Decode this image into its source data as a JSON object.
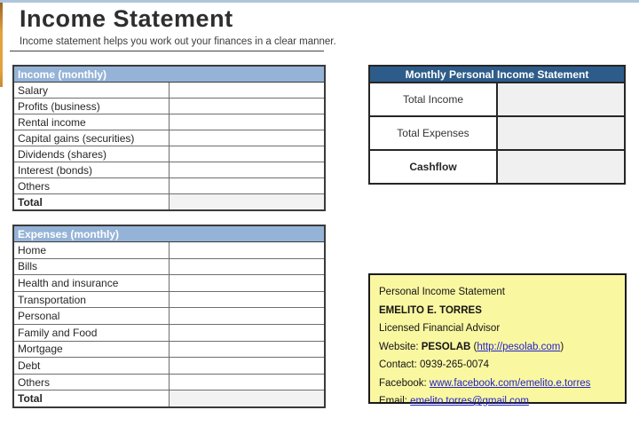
{
  "page": {
    "title": "Income Statement",
    "subtitle": "Income statement helps you work out your finances in a clear manner."
  },
  "income_table": {
    "header": "Income (monthly)",
    "rows": [
      {
        "label": "Salary",
        "value": ""
      },
      {
        "label": "Profits (business)",
        "value": ""
      },
      {
        "label": "Rental income",
        "value": ""
      },
      {
        "label": "Capital gains (securities)",
        "value": ""
      },
      {
        "label": "Dividends (shares)",
        "value": ""
      },
      {
        "label": "Interest (bonds)",
        "value": ""
      },
      {
        "label": "Others",
        "value": ""
      },
      {
        "label": "Total",
        "value": ""
      }
    ]
  },
  "expenses_table": {
    "header": "Expenses (monthly)",
    "rows": [
      {
        "label": "Home",
        "value": ""
      },
      {
        "label": "Bills",
        "value": ""
      },
      {
        "label": "Health and insurance",
        "value": ""
      },
      {
        "label": "Transportation",
        "value": ""
      },
      {
        "label": "Personal",
        "value": ""
      },
      {
        "label": "Family and Food",
        "value": ""
      },
      {
        "label": "Mortgage",
        "value": ""
      },
      {
        "label": "Debt",
        "value": ""
      },
      {
        "label": "Others",
        "value": ""
      },
      {
        "label": "Total",
        "value": ""
      }
    ]
  },
  "summary_table": {
    "header": "Monthly Personal Income Statement",
    "rows": [
      {
        "label": "Total Income",
        "value": ""
      },
      {
        "label": "Total Expenses",
        "value": ""
      },
      {
        "label": "Cashflow",
        "value": ""
      }
    ]
  },
  "contact_card": {
    "title": "Personal Income Statement",
    "name": "EMELITO E. TORRES",
    "role": "Licensed Financial Advisor",
    "website_label": "Website: ",
    "website_brand": "PESOLAB",
    "website_open_paren": " (",
    "website_link": "http://pesolab.com",
    "website_close_paren": ")",
    "contact": "Contact: 0939-265-0074",
    "facebook_label": "Facebook: ",
    "facebook_link": "www.facebook.com/emelito.e.torres",
    "email_label": "Email: ",
    "email_link": "emelito.torres@gmail.com"
  },
  "colors": {
    "income_header_bg": "#95b3d7",
    "summary_header_bg": "#2e5c8a",
    "total_cell_bg": "#f2f2f2",
    "card_bg": "#faf7a1",
    "link_blue": "#2323cb",
    "top_line_blue": "#adc6dc",
    "left_stripe_orange": "#e3a23c"
  }
}
